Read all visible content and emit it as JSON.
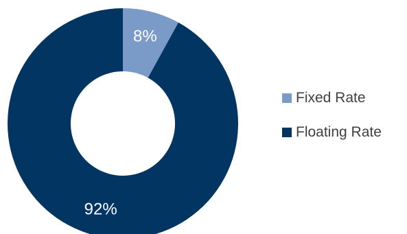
{
  "chart_data": {
    "type": "pie",
    "donut": true,
    "categories": [
      "Fixed Rate",
      "Floating Rate"
    ],
    "values": [
      8,
      92
    ],
    "data_labels": [
      "8%",
      "92%"
    ],
    "colors": [
      "#7a9bc8",
      "#033563"
    ],
    "legend": "right",
    "title": ""
  }
}
